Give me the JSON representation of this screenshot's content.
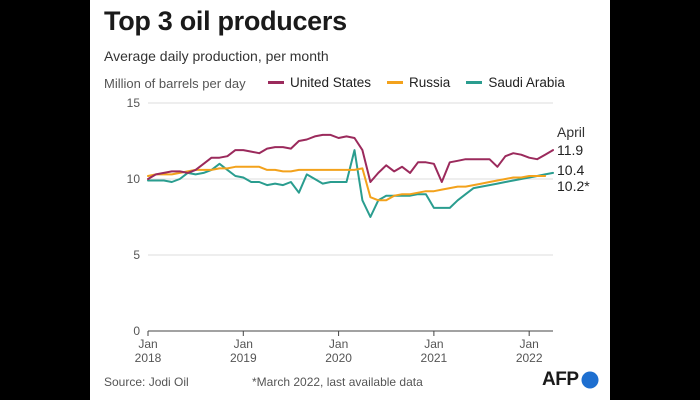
{
  "chart_data": {
    "type": "line",
    "title": "Top 3 oil producers",
    "subtitle": "Average daily production, per month",
    "ylabel": "Million of barrels per day",
    "ylim": [
      0,
      15
    ],
    "yticks": [
      0,
      5,
      10,
      15
    ],
    "xlim": [
      "2018-01",
      "2022-04"
    ],
    "xticks": [
      {
        "month": "2018-01",
        "top": "Jan",
        "bottom": "2018"
      },
      {
        "month": "2019-01",
        "top": "Jan",
        "bottom": "2019"
      },
      {
        "month": "2020-01",
        "top": "Jan",
        "bottom": "2020"
      },
      {
        "month": "2021-01",
        "top": "Jan",
        "bottom": "2021"
      },
      {
        "month": "2022-01",
        "top": "Jan",
        "bottom": "2022"
      }
    ],
    "grid": "horizontal",
    "legend": "top",
    "series": [
      {
        "name": "United States",
        "color": "#9b2a5c",
        "x": [
          "2018-01",
          "2018-02",
          "2018-03",
          "2018-04",
          "2018-05",
          "2018-06",
          "2018-07",
          "2018-08",
          "2018-09",
          "2018-10",
          "2018-11",
          "2018-12",
          "2019-01",
          "2019-02",
          "2019-03",
          "2019-04",
          "2019-05",
          "2019-06",
          "2019-07",
          "2019-08",
          "2019-09",
          "2019-10",
          "2019-11",
          "2019-12",
          "2020-01",
          "2020-02",
          "2020-03",
          "2020-04",
          "2020-05",
          "2020-06",
          "2020-07",
          "2020-08",
          "2020-09",
          "2020-10",
          "2020-11",
          "2020-12",
          "2021-01",
          "2021-02",
          "2021-03",
          "2021-04",
          "2021-05",
          "2021-06",
          "2021-07",
          "2021-08",
          "2021-09",
          "2021-10",
          "2021-11",
          "2021-12",
          "2022-01",
          "2022-02",
          "2022-03",
          "2022-04"
        ],
        "values": [
          10.0,
          10.3,
          10.4,
          10.5,
          10.5,
          10.4,
          10.6,
          11.0,
          11.4,
          11.4,
          11.5,
          11.9,
          11.9,
          11.8,
          11.7,
          12.0,
          12.1,
          12.1,
          12.0,
          12.5,
          12.6,
          12.8,
          12.9,
          12.9,
          12.7,
          12.8,
          12.7,
          11.9,
          9.8,
          10.4,
          10.9,
          10.5,
          10.8,
          10.4,
          11.1,
          11.1,
          11.0,
          9.8,
          11.1,
          11.2,
          11.3,
          11.3,
          11.3,
          11.3,
          10.8,
          11.5,
          11.7,
          11.6,
          11.4,
          11.3,
          11.6,
          11.9
        ]
      },
      {
        "name": "Russia",
        "color": "#f3a21c",
        "x": [
          "2018-01",
          "2018-02",
          "2018-03",
          "2018-04",
          "2018-05",
          "2018-06",
          "2018-07",
          "2018-08",
          "2018-09",
          "2018-10",
          "2018-11",
          "2018-12",
          "2019-01",
          "2019-02",
          "2019-03",
          "2019-04",
          "2019-05",
          "2019-06",
          "2019-07",
          "2019-08",
          "2019-09",
          "2019-10",
          "2019-11",
          "2019-12",
          "2020-01",
          "2020-02",
          "2020-03",
          "2020-04",
          "2020-05",
          "2020-06",
          "2020-07",
          "2020-08",
          "2020-09",
          "2020-10",
          "2020-11",
          "2020-12",
          "2021-01",
          "2021-02",
          "2021-03",
          "2021-04",
          "2021-05",
          "2021-06",
          "2021-07",
          "2021-08",
          "2021-09",
          "2021-10",
          "2021-11",
          "2021-12",
          "2022-01",
          "2022-02",
          "2022-03"
        ],
        "values": [
          10.2,
          10.3,
          10.3,
          10.3,
          10.4,
          10.5,
          10.6,
          10.6,
          10.6,
          10.7,
          10.7,
          10.8,
          10.8,
          10.8,
          10.8,
          10.6,
          10.6,
          10.5,
          10.5,
          10.6,
          10.6,
          10.6,
          10.6,
          10.6,
          10.6,
          10.6,
          10.6,
          10.7,
          8.8,
          8.6,
          8.6,
          8.9,
          9.0,
          9.0,
          9.1,
          9.2,
          9.2,
          9.3,
          9.4,
          9.5,
          9.5,
          9.6,
          9.7,
          9.8,
          9.9,
          10.0,
          10.1,
          10.1,
          10.2,
          10.2,
          10.2
        ]
      },
      {
        "name": "Saudi Arabia",
        "color": "#2a9d8f",
        "x": [
          "2018-01",
          "2018-02",
          "2018-03",
          "2018-04",
          "2018-05",
          "2018-06",
          "2018-07",
          "2018-08",
          "2018-09",
          "2018-10",
          "2018-11",
          "2018-12",
          "2019-01",
          "2019-02",
          "2019-03",
          "2019-04",
          "2019-05",
          "2019-06",
          "2019-07",
          "2019-08",
          "2019-09",
          "2019-10",
          "2019-11",
          "2019-12",
          "2020-01",
          "2020-02",
          "2020-03",
          "2020-04",
          "2020-05",
          "2020-06",
          "2020-07",
          "2020-08",
          "2020-09",
          "2020-10",
          "2020-11",
          "2020-12",
          "2021-01",
          "2021-02",
          "2021-03",
          "2021-04",
          "2021-05",
          "2021-06",
          "2021-07",
          "2021-08",
          "2021-09",
          "2021-10",
          "2021-11",
          "2021-12",
          "2022-01",
          "2022-02",
          "2022-03",
          "2022-04"
        ],
        "values": [
          9.9,
          9.9,
          9.9,
          9.8,
          10.0,
          10.4,
          10.3,
          10.4,
          10.6,
          11.0,
          10.6,
          10.2,
          10.1,
          9.8,
          9.8,
          9.6,
          9.7,
          9.6,
          9.8,
          9.1,
          10.3,
          10.0,
          9.7,
          9.8,
          9.8,
          9.8,
          11.9,
          8.6,
          7.5,
          8.6,
          8.9,
          8.9,
          8.9,
          8.9,
          9.0,
          9.0,
          8.1,
          8.1,
          8.1,
          8.6,
          9.0,
          9.4,
          9.5,
          9.6,
          9.7,
          9.8,
          9.9,
          10.0,
          10.1,
          10.2,
          10.3,
          10.4
        ]
      }
    ],
    "annotations": [
      {
        "text": "April",
        "series": "United States"
      },
      {
        "text": "11.9",
        "series": "United States"
      },
      {
        "text": "10.4",
        "series": "Saudi Arabia"
      },
      {
        "text": "10.2*",
        "series": "Russia"
      }
    ]
  },
  "footer": {
    "source": "Source: Jodi Oil",
    "note": "*March 2022, last available data",
    "logo": "AFP",
    "logo_color": "#1e6fd0"
  }
}
